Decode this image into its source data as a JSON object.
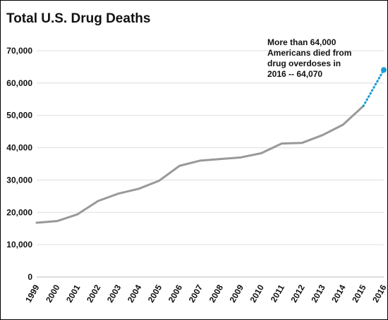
{
  "chart_data": {
    "type": "line",
    "title": "Total U.S. Drug Deaths",
    "xlabel": "",
    "ylabel": "",
    "x": [
      "1999",
      "2000",
      "2001",
      "2002",
      "2003",
      "2004",
      "2005",
      "2006",
      "2007",
      "2008",
      "2009",
      "2010",
      "2011",
      "2012",
      "2013",
      "2014",
      "2015",
      "2016"
    ],
    "series": [
      {
        "values": [
          16800,
          17300,
          19400,
          23500,
          25800,
          27300,
          29800,
          34400,
          36000,
          36500,
          37000,
          38300,
          41300,
          41500,
          43900,
          47100,
          52900,
          64070
        ],
        "color": "#999999",
        "projected_from_index": 16,
        "projected_color": "#1e9bd7"
      }
    ],
    "ylim": [
      0,
      70000
    ],
    "yticks": [
      0,
      10000,
      20000,
      30000,
      40000,
      50000,
      60000,
      70000
    ],
    "ytick_labels": [
      "0",
      "10,000",
      "20,000",
      "30,000",
      "40,000",
      "50,000",
      "60,000",
      "70,000"
    ],
    "grid": "horizontal",
    "annotation": {
      "lines": [
        "More than 64,000",
        "Americans died from",
        "drug overdoses in",
        "2016 -- 64,070"
      ]
    }
  }
}
